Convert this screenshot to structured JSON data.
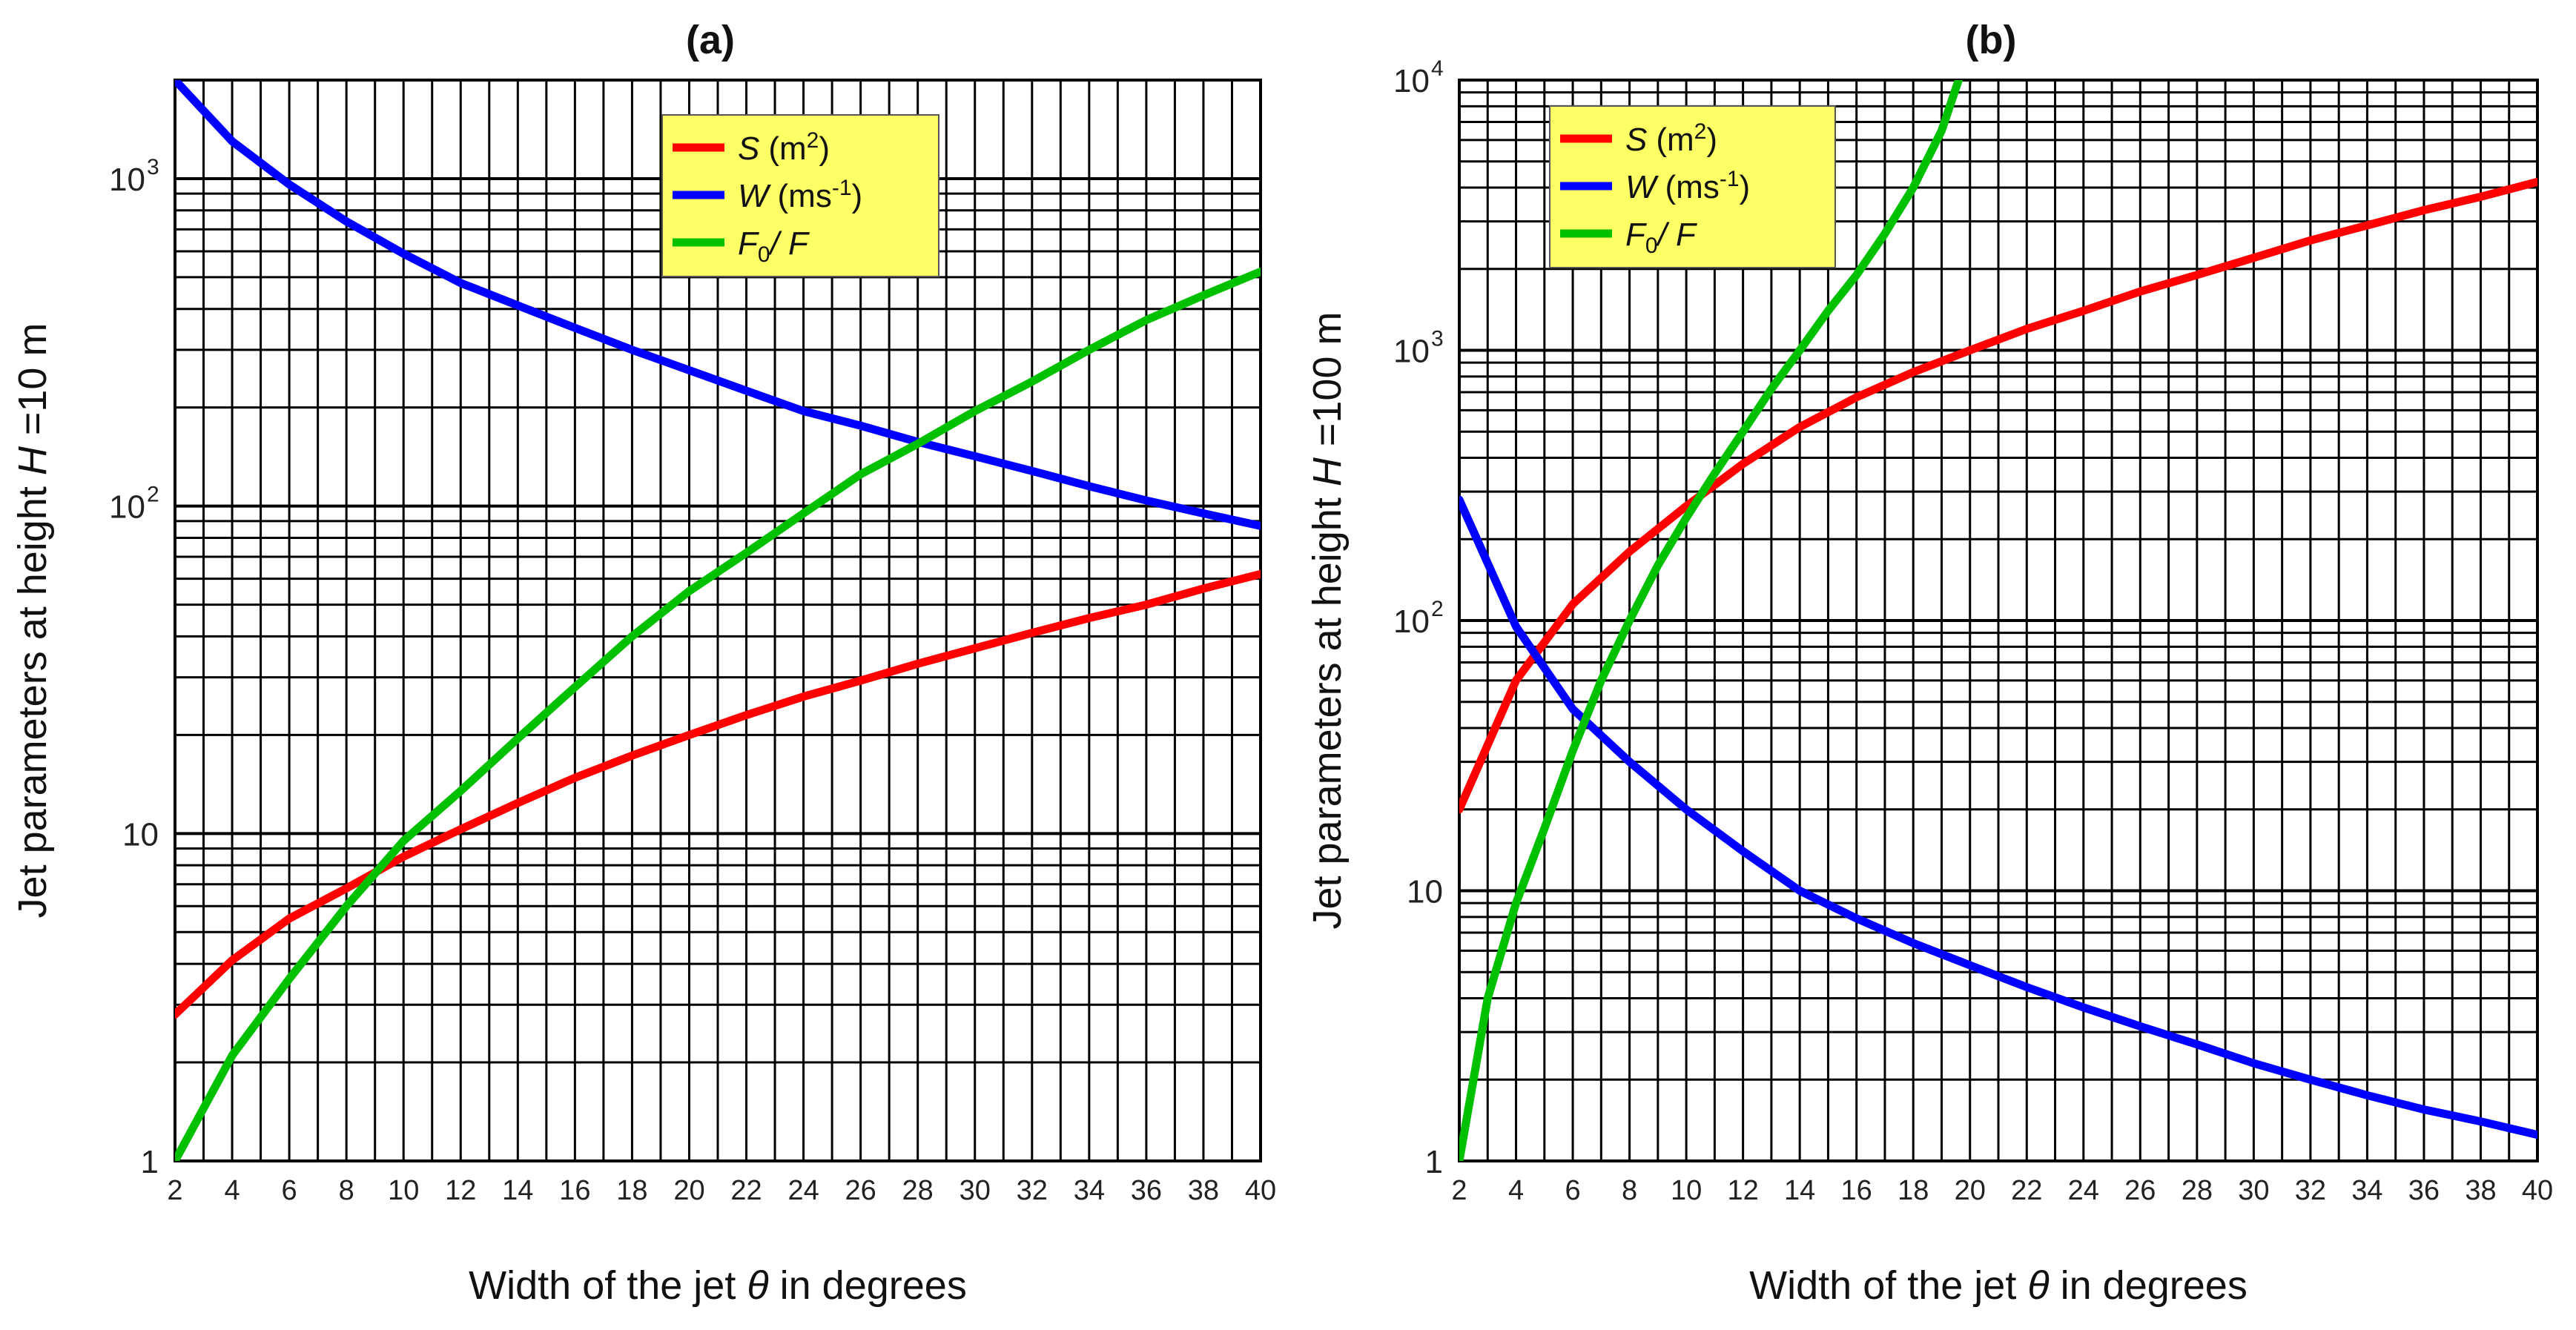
{
  "chart_data": [
    {
      "type": "line",
      "title": "(a)",
      "xlabel": "Width of the jet θ in degrees",
      "xlabel_parts": {
        "before": "Width of the jet ",
        "theta": "θ",
        "after": " in degrees"
      },
      "ylabel": "Jet parameters at height H =10 m",
      "ylabel_parts": {
        "before": "Jet parameters at height ",
        "H": "H",
        "after": " =10 m"
      },
      "yscale": "log",
      "xlim": [
        2,
        40
      ],
      "ylim": [
        1,
        2000
      ],
      "x_ticks": [
        2,
        4,
        6,
        8,
        10,
        12,
        14,
        16,
        18,
        20,
        22,
        24,
        26,
        28,
        30,
        32,
        34,
        36,
        38,
        40
      ],
      "x_tick_labels": [
        "2",
        "4",
        "6",
        "8",
        "10",
        "12",
        "14",
        "16",
        "18",
        "20",
        "22",
        "24",
        "26",
        "28",
        "30",
        "32",
        "34",
        "36",
        "38",
        "40"
      ],
      "y_major_ticks": [
        {
          "value": 1,
          "base": "1",
          "exp": ""
        },
        {
          "value": 10,
          "base": "10",
          "exp": ""
        },
        {
          "value": 100,
          "base": "10",
          "exp": "2"
        },
        {
          "value": 1000,
          "base": "10",
          "exp": "3"
        }
      ],
      "grid": true,
      "legend": [
        {
          "label": "S",
          "unit": "(m",
          "sup": "2",
          "unit_end": ")",
          "color": "#ff0000"
        },
        {
          "label": "W",
          "unit": "(ms",
          "sup": "-1",
          "unit_end": ")",
          "color": "#0000ff"
        },
        {
          "label": "F",
          "sub": "0",
          "slash": "/ F",
          "color": "#00c000"
        }
      ],
      "legend_bg": "#ffff66",
      "series": [
        {
          "name": "S (m2)",
          "color": "#ff0000",
          "x": [
            2,
            4,
            6,
            8,
            10,
            12,
            14,
            16,
            18,
            20,
            22,
            24,
            26,
            28,
            30,
            32,
            34,
            36,
            38,
            40
          ],
          "values": [
            2.8,
            4.1,
            5.5,
            6.8,
            8.5,
            10.3,
            12.4,
            14.8,
            17.3,
            20,
            23,
            26.2,
            29.3,
            33,
            36.8,
            41,
            45.5,
            50,
            56,
            62
          ]
        },
        {
          "name": "W (ms-1)",
          "color": "#0000ff",
          "x": [
            2,
            4,
            6,
            8,
            10,
            12,
            14,
            16,
            18,
            20,
            22,
            24,
            26,
            28,
            30,
            32,
            34,
            36,
            38,
            40
          ],
          "values": [
            2000,
            1300,
            960,
            740,
            590,
            480,
            410,
            350,
            300,
            260,
            225,
            195,
            176,
            157,
            142,
            128,
            115,
            104,
            95,
            87
          ]
        },
        {
          "name": "F0/F",
          "color": "#00c000",
          "x": [
            2,
            4,
            6,
            8,
            10,
            12,
            14,
            16,
            18,
            20,
            22,
            24,
            26,
            28,
            30,
            32,
            34,
            36,
            38,
            40
          ],
          "values": [
            1,
            2.1,
            3.6,
            6,
            9.5,
            13.5,
            19.5,
            28,
            40,
            55,
            72,
            95,
            125,
            155,
            195,
            240,
            300,
            370,
            440,
            520
          ]
        }
      ]
    },
    {
      "type": "line",
      "title": "(b)",
      "xlabel": "Width of the jet θ in degrees",
      "xlabel_parts": {
        "before": "Width of the jet ",
        "theta": "θ",
        "after": " in degrees"
      },
      "ylabel": "Jet parameters at height H =100 m",
      "ylabel_parts": {
        "before": "Jet parameters at height ",
        "H": "H",
        "after": " =100 m"
      },
      "yscale": "log",
      "xlim": [
        2,
        40
      ],
      "ylim": [
        1,
        10000
      ],
      "x_ticks": [
        2,
        4,
        6,
        8,
        10,
        12,
        14,
        16,
        18,
        20,
        22,
        24,
        26,
        28,
        30,
        32,
        34,
        36,
        38,
        40
      ],
      "x_tick_labels": [
        "2",
        "4",
        "6",
        "8",
        "10",
        "12",
        "14",
        "16",
        "18",
        "20",
        "22",
        "24",
        "26",
        "28",
        "30",
        "32",
        "34",
        "36",
        "38",
        "40"
      ],
      "y_major_ticks": [
        {
          "value": 1,
          "base": "1",
          "exp": ""
        },
        {
          "value": 10,
          "base": "10",
          "exp": ""
        },
        {
          "value": 100,
          "base": "10",
          "exp": "2"
        },
        {
          "value": 1000,
          "base": "10",
          "exp": "3"
        },
        {
          "value": 10000,
          "base": "10",
          "exp": "4"
        }
      ],
      "grid": true,
      "legend": [
        {
          "label": "S",
          "unit": "(m",
          "sup": "2",
          "unit_end": ")",
          "color": "#ff0000"
        },
        {
          "label": "W",
          "unit": "(ms",
          "sup": "-1",
          "unit_end": ")",
          "color": "#0000ff"
        },
        {
          "label": "F",
          "sub": "0",
          "slash": "/ F",
          "color": "#00c000"
        }
      ],
      "legend_bg": "#ffff66",
      "series": [
        {
          "name": "S (m2)",
          "color": "#ff0000",
          "x": [
            2,
            4,
            6,
            8,
            10,
            12,
            14,
            16,
            18,
            20,
            22,
            24,
            26,
            28,
            30,
            32,
            34,
            36,
            38,
            40
          ],
          "values": [
            20,
            60,
            115,
            180,
            265,
            380,
            520,
            670,
            830,
            1000,
            1200,
            1400,
            1650,
            1900,
            2200,
            2550,
            2900,
            3300,
            3700,
            4200
          ]
        },
        {
          "name": "W (ms-1)",
          "color": "#0000ff",
          "x": [
            2,
            4,
            6,
            8,
            10,
            12,
            14,
            16,
            18,
            20,
            22,
            24,
            26,
            28,
            30,
            32,
            34,
            36,
            38,
            40
          ],
          "values": [
            280,
            95,
            47,
            30,
            20,
            14,
            10,
            7.9,
            6.4,
            5.3,
            4.4,
            3.7,
            3.15,
            2.7,
            2.3,
            2.0,
            1.75,
            1.55,
            1.4,
            1.25
          ]
        },
        {
          "name": "F0/F",
          "color": "#00c000",
          "x": [
            2,
            3,
            4,
            5,
            6,
            7,
            8,
            9,
            10,
            11,
            12,
            13,
            14,
            15,
            16,
            17,
            18,
            19,
            19.6
          ],
          "values": [
            1,
            4,
            9,
            17,
            33,
            60,
            100,
            160,
            240,
            350,
            500,
            720,
            1000,
            1400,
            1900,
            2700,
            4000,
            6500,
            10000
          ]
        }
      ]
    }
  ]
}
